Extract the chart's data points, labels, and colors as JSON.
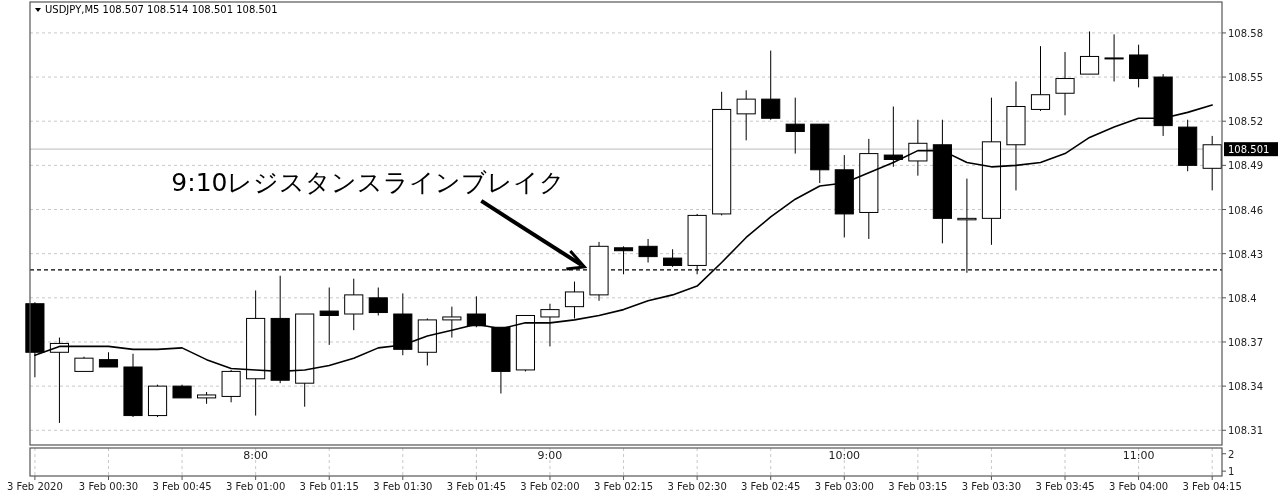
{
  "chart_data": [
    {
      "type": "candlestick",
      "title": "USDJPY,M5  108.507 108.514 108.501 108.501",
      "x": [
        "2020-02-03T00:15",
        "2020-02-03T00:20",
        "2020-02-03T00:25",
        "2020-02-03T00:30",
        "2020-02-03T00:35",
        "2020-02-03T00:40",
        "2020-02-03T00:45",
        "2020-02-03T00:50",
        "2020-02-03T00:55",
        "2020-02-03T01:00",
        "2020-02-03T01:05",
        "2020-02-03T01:10",
        "2020-02-03T01:15",
        "2020-02-03T01:20",
        "2020-02-03T01:25",
        "2020-02-03T01:30",
        "2020-02-03T01:35",
        "2020-02-03T01:40",
        "2020-02-03T01:45",
        "2020-02-03T01:50",
        "2020-02-03T01:55",
        "2020-02-03T02:00",
        "2020-02-03T02:05",
        "2020-02-03T02:10",
        "2020-02-03T02:15",
        "2020-02-03T02:20",
        "2020-02-03T02:25",
        "2020-02-03T02:30",
        "2020-02-03T02:35",
        "2020-02-03T02:40",
        "2020-02-03T02:45",
        "2020-02-03T02:50",
        "2020-02-03T02:55",
        "2020-02-03T03:00",
        "2020-02-03T03:05",
        "2020-02-03T03:10",
        "2020-02-03T03:15",
        "2020-02-03T03:20",
        "2020-02-03T03:25",
        "2020-02-03T03:30",
        "2020-02-03T03:35",
        "2020-02-03T03:40",
        "2020-02-03T03:45",
        "2020-02-03T03:50",
        "2020-02-03T03:55",
        "2020-02-03T04:00",
        "2020-02-03T04:05",
        "2020-02-03T04:10",
        "2020-02-03T04:15"
      ],
      "ohlc": [
        [
          108.396,
          108.397,
          108.346,
          108.363
        ],
        [
          108.363,
          108.373,
          108.315,
          108.369
        ],
        [
          108.35,
          108.36,
          108.35,
          108.359
        ],
        [
          108.358,
          108.363,
          108.353,
          108.353
        ],
        [
          108.353,
          108.362,
          108.319,
          108.32
        ],
        [
          108.32,
          108.341,
          108.319,
          108.34
        ],
        [
          108.34,
          108.341,
          108.332,
          108.332
        ],
        [
          108.332,
          108.336,
          108.328,
          108.334
        ],
        [
          108.333,
          108.351,
          108.329,
          108.35
        ],
        [
          108.345,
          108.405,
          108.32,
          108.386
        ],
        [
          108.386,
          108.415,
          108.342,
          108.344
        ],
        [
          108.342,
          108.389,
          108.326,
          108.389
        ],
        [
          108.391,
          108.407,
          108.368,
          108.388
        ],
        [
          108.389,
          108.413,
          108.378,
          108.402
        ],
        [
          108.4,
          108.407,
          108.388,
          108.39
        ],
        [
          108.389,
          108.403,
          108.361,
          108.365
        ],
        [
          108.363,
          108.386,
          108.354,
          108.385
        ],
        [
          108.385,
          108.394,
          108.373,
          108.387
        ],
        [
          108.389,
          108.401,
          108.38,
          108.381
        ],
        [
          108.38,
          108.38,
          108.335,
          108.35
        ],
        [
          108.351,
          108.388,
          108.35,
          108.388
        ],
        [
          108.387,
          108.396,
          108.367,
          108.392
        ],
        [
          108.394,
          108.411,
          108.386,
          108.404
        ],
        [
          108.402,
          108.438,
          108.398,
          108.435
        ],
        [
          108.434,
          108.435,
          108.416,
          108.432
        ],
        [
          108.435,
          108.44,
          108.424,
          108.428
        ],
        [
          108.427,
          108.433,
          108.421,
          108.422
        ],
        [
          108.422,
          108.457,
          108.416,
          108.456
        ],
        [
          108.457,
          108.54,
          108.456,
          108.528
        ],
        [
          108.525,
          108.541,
          108.507,
          108.535
        ],
        [
          108.535,
          108.568,
          108.521,
          108.522
        ],
        [
          108.518,
          108.536,
          108.498,
          108.513
        ],
        [
          108.518,
          108.518,
          108.478,
          108.487
        ],
        [
          108.487,
          108.497,
          108.441,
          108.457
        ],
        [
          108.458,
          108.508,
          108.44,
          108.498
        ],
        [
          108.497,
          108.53,
          108.489,
          108.494
        ],
        [
          108.493,
          108.521,
          108.483,
          108.505
        ],
        [
          108.504,
          108.521,
          108.437,
          108.454
        ],
        [
          108.453,
          108.481,
          108.417,
          108.454
        ],
        [
          108.454,
          108.536,
          108.436,
          108.506
        ],
        [
          108.504,
          108.547,
          108.473,
          108.53
        ],
        [
          108.528,
          108.571,
          108.527,
          108.538
        ],
        [
          108.539,
          108.567,
          108.524,
          108.549
        ],
        [
          108.552,
          108.581,
          108.552,
          108.564
        ],
        [
          108.563,
          108.579,
          108.547,
          108.563
        ],
        [
          108.565,
          108.572,
          108.543,
          108.549
        ],
        [
          108.55,
          108.552,
          108.51,
          108.517
        ],
        [
          108.516,
          108.521,
          108.486,
          108.49
        ],
        [
          108.488,
          108.51,
          108.473,
          108.504
        ]
      ],
      "series": [
        {
          "type": "line",
          "color": "#000000",
          "values": [
            108.361,
            108.367,
            108.367,
            108.367,
            108.365,
            108.365,
            108.366,
            108.358,
            108.352,
            108.351,
            108.35,
            108.351,
            108.354,
            108.359,
            108.366,
            108.368,
            108.374,
            108.378,
            108.382,
            108.379,
            108.383,
            108.383,
            108.385,
            108.388,
            108.392,
            108.398,
            108.402,
            108.408,
            108.424,
            108.441,
            108.455,
            108.467,
            108.476,
            108.478,
            108.485,
            108.492,
            108.5,
            108.5,
            108.492,
            108.489,
            108.49,
            108.492,
            108.498,
            108.509,
            108.516,
            108.522,
            108.522,
            108.526,
            108.531
          ]
        }
      ],
      "xlim": [
        "2020-02-03T00:14",
        "2020-02-03T04:17"
      ],
      "ylim": [
        108.3,
        108.601
      ],
      "yticks": [
        108.31,
        108.34,
        108.37,
        108.4,
        108.43,
        108.46,
        108.49,
        108.52,
        108.55,
        108.58
      ],
      "ref_lines": [
        {
          "axis": "y",
          "value": 108.419,
          "color": "#000000",
          "line_style": "dashed"
        },
        {
          "axis": "y",
          "value": 108.501,
          "label": "108.501",
          "color": "#c8c8c8"
        }
      ],
      "annotations": [
        {
          "text": "9:10レジスタンスラインブレイク",
          "x": "2020-02-03T02:07",
          "y": 108.421
        }
      ],
      "grid": true,
      "tick_labels": "y"
    },
    {
      "type": "line",
      "xlim": [
        "2020-02-03T00:14",
        "2020-02-03T04:17"
      ],
      "x2lim": [
        "2020-02-03T00:14",
        "2020-02-03T04:17"
      ],
      "x2ticks": [
        {
          "value": "2020-02-03T01:00",
          "label": "8:00"
        },
        {
          "value": "2020-02-03T02:00",
          "label": "9:00"
        },
        {
          "value": "2020-02-03T03:00",
          "label": "10:00"
        },
        {
          "value": "2020-02-03T04:00",
          "label": "11:00"
        }
      ],
      "xticks": [
        {
          "value": "2020-02-03T00:15",
          "label": "3 Feb 2020"
        },
        {
          "value": "2020-02-03T00:30",
          "label": "3 Feb 00:30"
        },
        {
          "value": "2020-02-03T00:45",
          "label": "3 Feb 00:45"
        },
        {
          "value": "2020-02-03T01:00",
          "label": "3 Feb 01:00"
        },
        {
          "value": "2020-02-03T01:15",
          "label": "3 Feb 01:15"
        },
        {
          "value": "2020-02-03T01:30",
          "label": "3 Feb 01:30"
        },
        {
          "value": "2020-02-03T01:45",
          "label": "3 Feb 01:45"
        },
        {
          "value": "2020-02-03T02:00",
          "label": "3 Feb 02:00"
        },
        {
          "value": "2020-02-03T02:15",
          "label": "3 Feb 02:15"
        },
        {
          "value": "2020-02-03T02:30",
          "label": "3 Feb 02:30"
        },
        {
          "value": "2020-02-03T02:45",
          "label": "3 Feb 02:45"
        },
        {
          "value": "2020-02-03T03:00",
          "label": "3 Feb 03:00"
        },
        {
          "value": "2020-02-03T03:15",
          "label": "3 Feb 03:15"
        },
        {
          "value": "2020-02-03T03:30",
          "label": "3 Feb 03:30"
        },
        {
          "value": "2020-02-03T03:45",
          "label": "3 Feb 03:45"
        },
        {
          "value": "2020-02-03T04:00",
          "label": "3 Feb 04:00"
        },
        {
          "value": "2020-02-03T04:15",
          "label": "3 Feb 04:15"
        }
      ],
      "ylim": [
        0.72,
        2.33
      ],
      "yticks": [
        1,
        2
      ],
      "grid": "x"
    }
  ]
}
